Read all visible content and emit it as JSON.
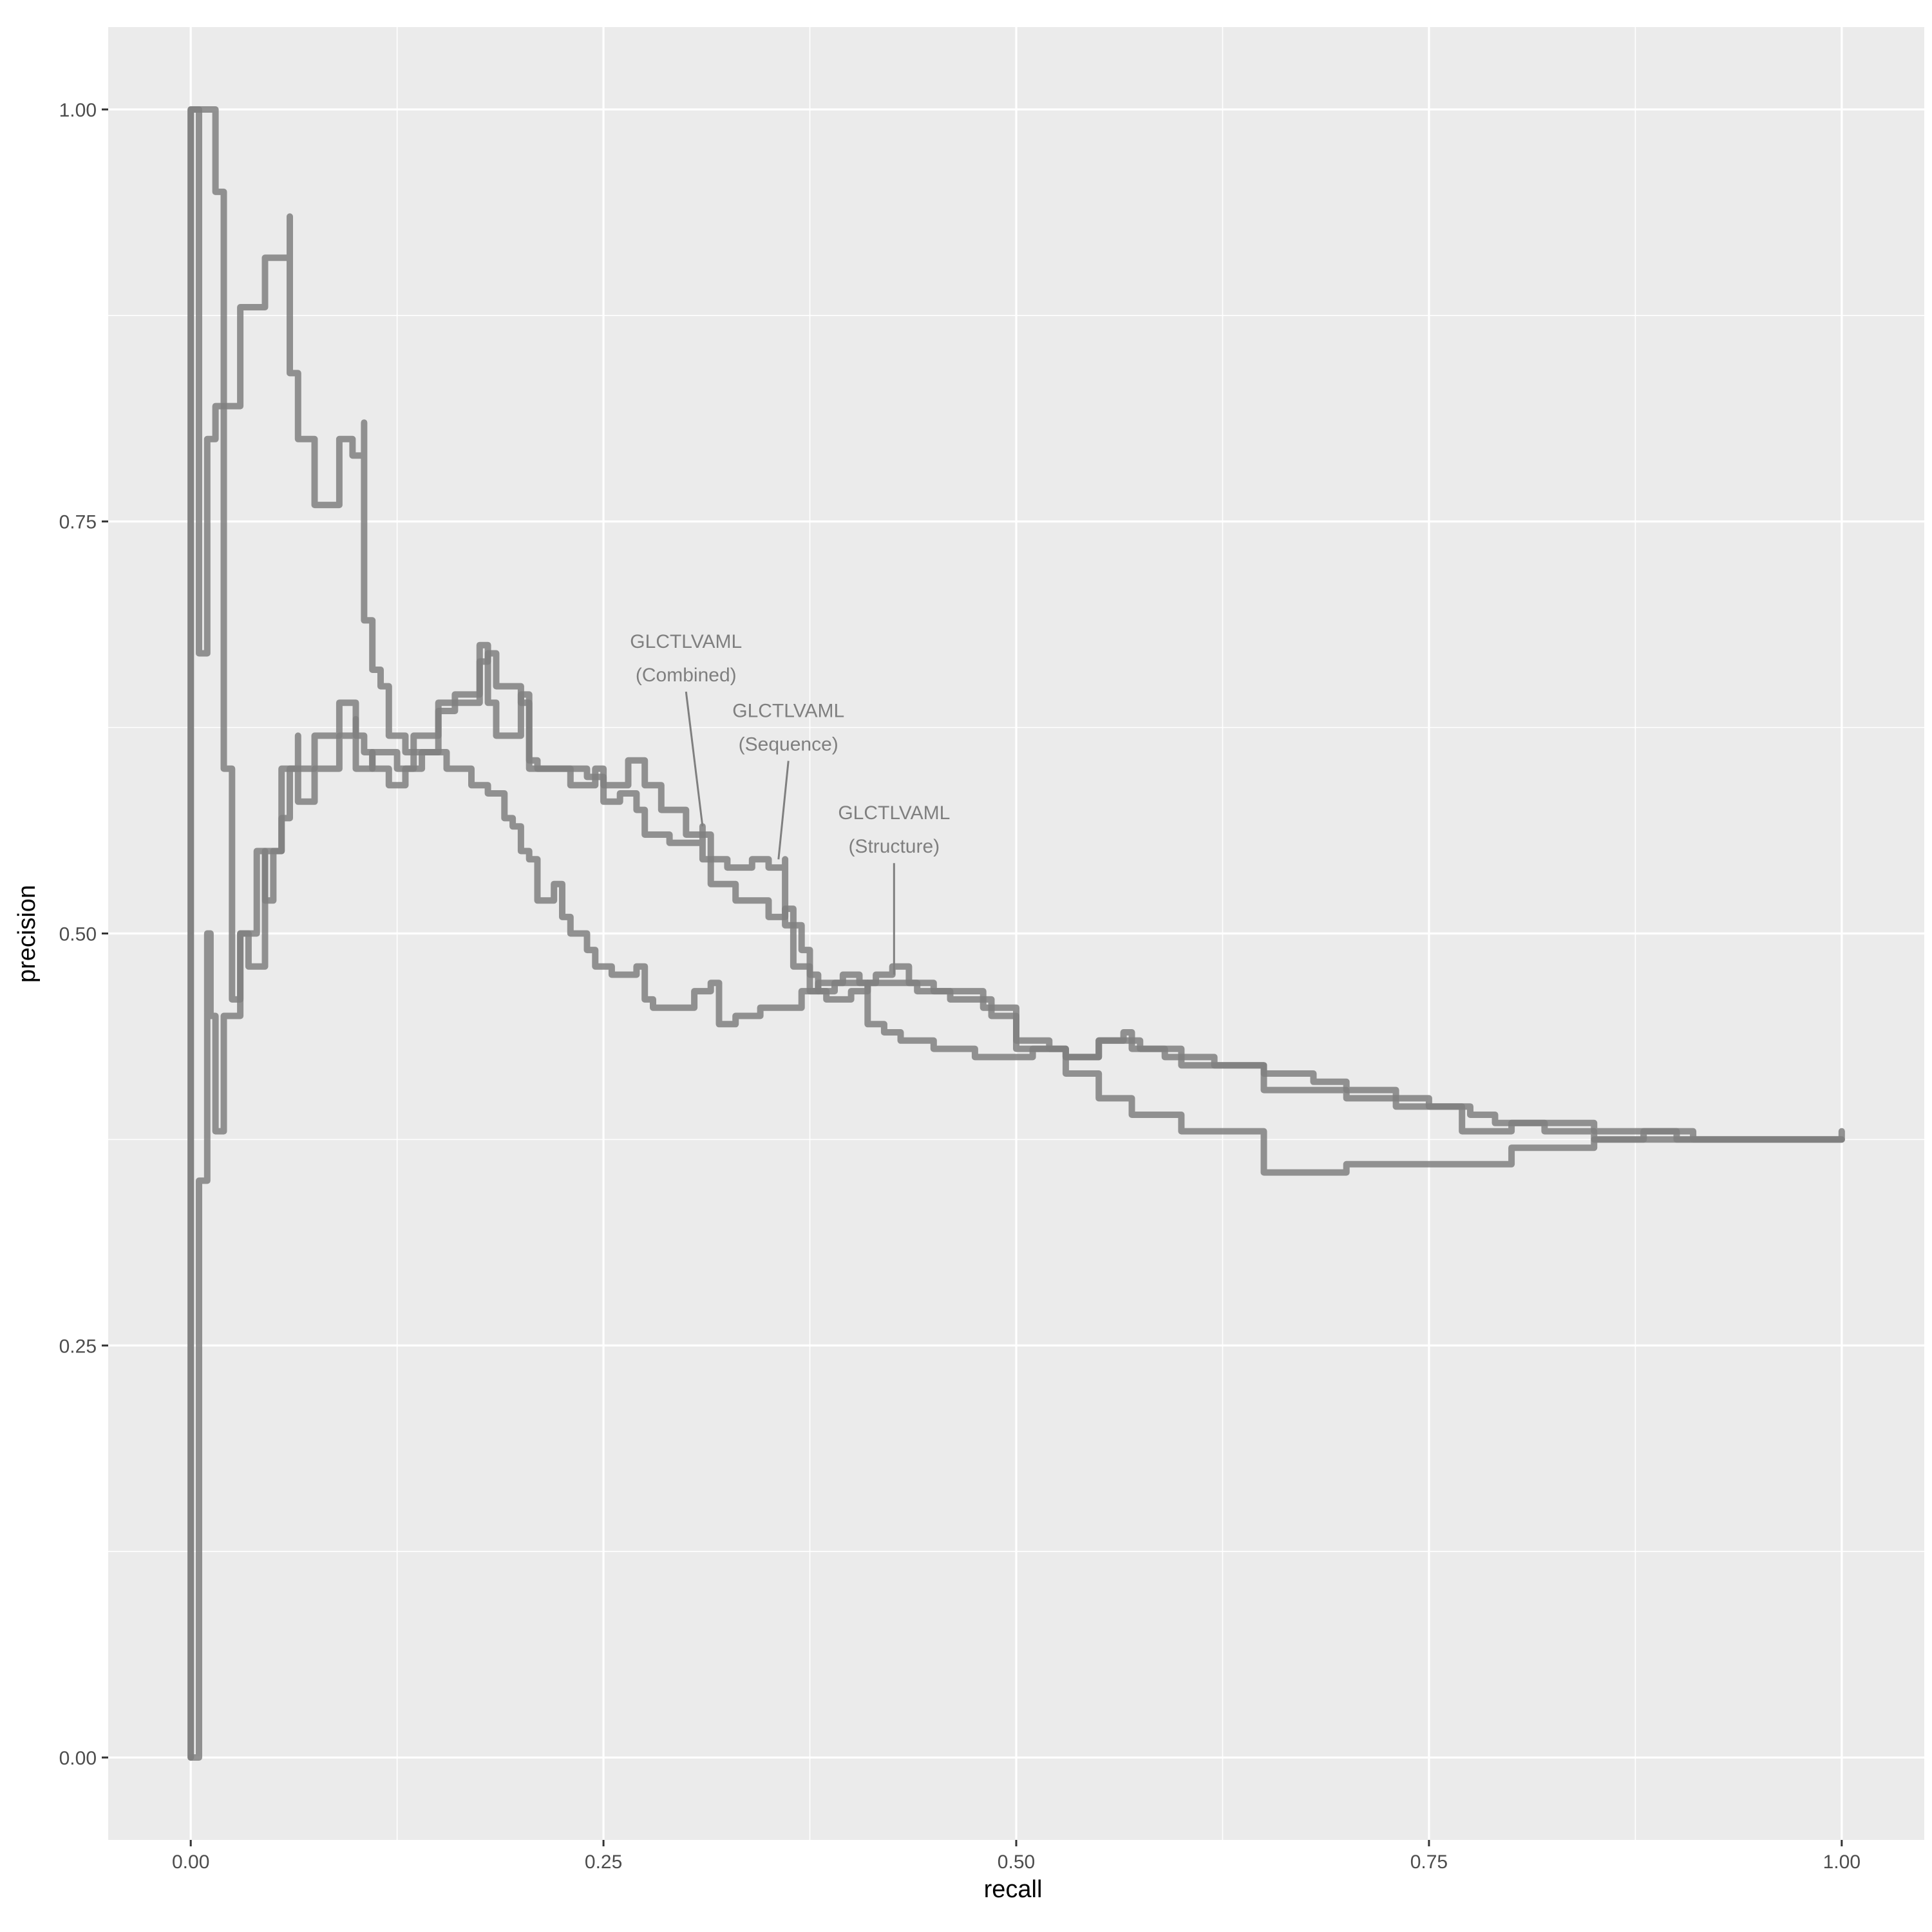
{
  "chart_data": {
    "type": "line",
    "title": "",
    "xlabel": "recall",
    "ylabel": "precision",
    "xlim": [
      -0.05,
      1.05
    ],
    "ylim": [
      -0.05,
      1.05
    ],
    "x_ticks": [
      0,
      0.25,
      0.5,
      0.75,
      1
    ],
    "x_tick_labels": [
      "0.00",
      "0.25",
      "0.50",
      "0.75",
      "1.00"
    ],
    "y_ticks": [
      0,
      0.25,
      0.5,
      0.75,
      1
    ],
    "y_tick_labels": [
      "0.00",
      "0.25",
      "0.50",
      "0.75",
      "1.00"
    ],
    "grid": true,
    "legend": "none",
    "line_color": "#808080",
    "panel_background": "#ebebeb",
    "grid_color": "#ffffff",
    "series": [
      {
        "id": "combined",
        "values": [
          [
            0,
            0
          ],
          [
            0,
            1
          ],
          [
            0.005,
            1
          ],
          [
            0.005,
            0.67
          ],
          [
            0.01,
            0.8
          ],
          [
            0.015,
            0.8
          ],
          [
            0.015,
            0.82
          ],
          [
            0.03,
            0.88
          ],
          [
            0.045,
            0.91
          ],
          [
            0.06,
            0.935
          ],
          [
            0.06,
            0.84
          ],
          [
            0.065,
            0.84
          ],
          [
            0.065,
            0.8
          ],
          [
            0.07,
            0.8
          ],
          [
            0.075,
            0.76
          ],
          [
            0.09,
            0.8
          ],
          [
            0.098,
            0.79
          ],
          [
            0.105,
            0.81
          ],
          [
            0.105,
            0.69
          ],
          [
            0.11,
            0.68
          ],
          [
            0.11,
            0.66
          ],
          [
            0.115,
            0.65
          ],
          [
            0.12,
            0.62
          ],
          [
            0.13,
            0.61
          ],
          [
            0.15,
            0.64
          ],
          [
            0.175,
            0.675
          ],
          [
            0.18,
            0.64
          ],
          [
            0.185,
            0.62
          ],
          [
            0.2,
            0.645
          ],
          [
            0.205,
            0.645
          ],
          [
            0.205,
            0.605
          ],
          [
            0.21,
            0.6
          ],
          [
            0.225,
            0.6
          ],
          [
            0.24,
            0.595
          ],
          [
            0.25,
            0.58
          ],
          [
            0.26,
            0.585
          ],
          [
            0.27,
            0.575
          ],
          [
            0.275,
            0.56
          ],
          [
            0.29,
            0.555
          ],
          [
            0.31,
            0.565
          ],
          [
            0.31,
            0.545
          ],
          [
            0.325,
            0.54
          ],
          [
            0.34,
            0.545
          ],
          [
            0.35,
            0.54
          ],
          [
            0.36,
            0.545
          ],
          [
            0.36,
            0.505
          ],
          [
            0.37,
            0.49
          ],
          [
            0.375,
            0.475
          ],
          [
            0.38,
            0.465
          ],
          [
            0.39,
            0.47
          ],
          [
            0.405,
            0.47
          ],
          [
            0.41,
            0.445
          ],
          [
            0.42,
            0.44
          ],
          [
            0.43,
            0.435
          ],
          [
            0.44,
            0.435
          ],
          [
            0.45,
            0.43
          ],
          [
            0.46,
            0.43
          ],
          [
            0.475,
            0.425
          ],
          [
            0.5,
            0.425
          ],
          [
            0.51,
            0.43
          ],
          [
            0.53,
            0.425
          ],
          [
            0.55,
            0.435
          ],
          [
            0.565,
            0.44
          ],
          [
            0.57,
            0.43
          ],
          [
            0.6,
            0.42
          ],
          [
            0.65,
            0.405
          ],
          [
            0.7,
            0.4
          ],
          [
            0.75,
            0.395
          ],
          [
            0.77,
            0.38
          ],
          [
            0.8,
            0.385
          ],
          [
            0.85,
            0.38
          ],
          [
            0.9,
            0.375
          ],
          [
            0.95,
            0.375
          ],
          [
            1.0,
            0.375
          ]
        ]
      },
      {
        "id": "sequence",
        "values": [
          [
            0,
            0
          ],
          [
            0,
            1
          ],
          [
            0.015,
            1
          ],
          [
            0.015,
            0.95
          ],
          [
            0.02,
            0.6
          ],
          [
            0.025,
            0.46
          ],
          [
            0.03,
            0.5
          ],
          [
            0.035,
            0.5
          ],
          [
            0.035,
            0.48
          ],
          [
            0.045,
            0.55
          ],
          [
            0.055,
            0.6
          ],
          [
            0.065,
            0.62
          ],
          [
            0.065,
            0.58
          ],
          [
            0.075,
            0.6
          ],
          [
            0.09,
            0.62
          ],
          [
            0.1,
            0.63
          ],
          [
            0.1,
            0.6
          ],
          [
            0.11,
            0.61
          ],
          [
            0.125,
            0.6
          ],
          [
            0.135,
            0.62
          ],
          [
            0.15,
            0.635
          ],
          [
            0.16,
            0.645
          ],
          [
            0.175,
            0.665
          ],
          [
            0.18,
            0.67
          ],
          [
            0.185,
            0.65
          ],
          [
            0.2,
            0.64
          ],
          [
            0.205,
            0.6
          ],
          [
            0.22,
            0.6
          ],
          [
            0.23,
            0.59
          ],
          [
            0.245,
            0.6
          ],
          [
            0.25,
            0.59
          ],
          [
            0.265,
            0.605
          ],
          [
            0.275,
            0.59
          ],
          [
            0.285,
            0.575
          ],
          [
            0.3,
            0.56
          ],
          [
            0.31,
            0.56
          ],
          [
            0.315,
            0.53
          ],
          [
            0.33,
            0.52
          ],
          [
            0.345,
            0.52
          ],
          [
            0.35,
            0.51
          ],
          [
            0.36,
            0.515
          ],
          [
            0.365,
            0.48
          ],
          [
            0.375,
            0.465
          ],
          [
            0.385,
            0.46
          ],
          [
            0.4,
            0.465
          ],
          [
            0.41,
            0.47
          ],
          [
            0.43,
            0.47
          ],
          [
            0.44,
            0.465
          ],
          [
            0.46,
            0.46
          ],
          [
            0.48,
            0.46
          ],
          [
            0.485,
            0.45
          ],
          [
            0.5,
            0.435
          ],
          [
            0.52,
            0.43
          ],
          [
            0.53,
            0.415
          ],
          [
            0.55,
            0.4
          ],
          [
            0.57,
            0.39
          ],
          [
            0.6,
            0.38
          ],
          [
            0.65,
            0.355
          ],
          [
            0.7,
            0.36
          ],
          [
            0.75,
            0.36
          ],
          [
            0.8,
            0.37
          ],
          [
            0.85,
            0.375
          ],
          [
            0.9,
            0.375
          ],
          [
            0.95,
            0.375
          ],
          [
            1.0,
            0.38
          ]
        ]
      },
      {
        "id": "structure",
        "values": [
          [
            0,
            0
          ],
          [
            0.005,
            0.35
          ],
          [
            0.01,
            0.5
          ],
          [
            0.012,
            0.45
          ],
          [
            0.015,
            0.38
          ],
          [
            0.02,
            0.45
          ],
          [
            0.03,
            0.5
          ],
          [
            0.04,
            0.55
          ],
          [
            0.045,
            0.52
          ],
          [
            0.05,
            0.55
          ],
          [
            0.055,
            0.57
          ],
          [
            0.06,
            0.6
          ],
          [
            0.075,
            0.62
          ],
          [
            0.08,
            0.62
          ],
          [
            0.09,
            0.64
          ],
          [
            0.1,
            0.62
          ],
          [
            0.105,
            0.61
          ],
          [
            0.11,
            0.6
          ],
          [
            0.115,
            0.6
          ],
          [
            0.12,
            0.59
          ],
          [
            0.13,
            0.6
          ],
          [
            0.14,
            0.61
          ],
          [
            0.155,
            0.6
          ],
          [
            0.165,
            0.6
          ],
          [
            0.17,
            0.59
          ],
          [
            0.18,
            0.585
          ],
          [
            0.19,
            0.57
          ],
          [
            0.195,
            0.565
          ],
          [
            0.2,
            0.55
          ],
          [
            0.205,
            0.545
          ],
          [
            0.21,
            0.52
          ],
          [
            0.22,
            0.53
          ],
          [
            0.225,
            0.51
          ],
          [
            0.23,
            0.5
          ],
          [
            0.24,
            0.49
          ],
          [
            0.245,
            0.48
          ],
          [
            0.255,
            0.475
          ],
          [
            0.27,
            0.48
          ],
          [
            0.275,
            0.46
          ],
          [
            0.28,
            0.455
          ],
          [
            0.29,
            0.455
          ],
          [
            0.305,
            0.465
          ],
          [
            0.315,
            0.47
          ],
          [
            0.32,
            0.445
          ],
          [
            0.33,
            0.45
          ],
          [
            0.345,
            0.455
          ],
          [
            0.36,
            0.455
          ],
          [
            0.37,
            0.465
          ],
          [
            0.38,
            0.47
          ],
          [
            0.395,
            0.475
          ],
          [
            0.405,
            0.47
          ],
          [
            0.415,
            0.475
          ],
          [
            0.425,
            0.48
          ],
          [
            0.435,
            0.47
          ],
          [
            0.45,
            0.465
          ],
          [
            0.47,
            0.465
          ],
          [
            0.48,
            0.455
          ],
          [
            0.5,
            0.43
          ],
          [
            0.53,
            0.425
          ],
          [
            0.55,
            0.435
          ],
          [
            0.56,
            0.435
          ],
          [
            0.575,
            0.43
          ],
          [
            0.59,
            0.425
          ],
          [
            0.6,
            0.425
          ],
          [
            0.62,
            0.42
          ],
          [
            0.65,
            0.415
          ],
          [
            0.68,
            0.41
          ],
          [
            0.7,
            0.405
          ],
          [
            0.73,
            0.395
          ],
          [
            0.76,
            0.395
          ],
          [
            0.775,
            0.39
          ],
          [
            0.79,
            0.385
          ],
          [
            0.82,
            0.38
          ],
          [
            0.85,
            0.375
          ],
          [
            0.88,
            0.38
          ],
          [
            0.91,
            0.375
          ],
          [
            0.95,
            0.375
          ],
          [
            1.0,
            0.375
          ]
        ]
      }
    ],
    "annotations": [
      {
        "line1": "GLCTLVAML",
        "line2": "(Combined)",
        "x": 0.3,
        "y": 0.66,
        "target_x": 0.31,
        "target_y": 0.565
      },
      {
        "line1": "GLCTLVAML",
        "line2": "(Sequence)",
        "x": 0.362,
        "y": 0.618,
        "target_x": 0.356,
        "target_y": 0.545
      },
      {
        "line1": "GLCTLVAML",
        "line2": "(Structure)",
        "x": 0.426,
        "y": 0.556,
        "target_x": 0.426,
        "target_y": 0.475
      }
    ]
  }
}
